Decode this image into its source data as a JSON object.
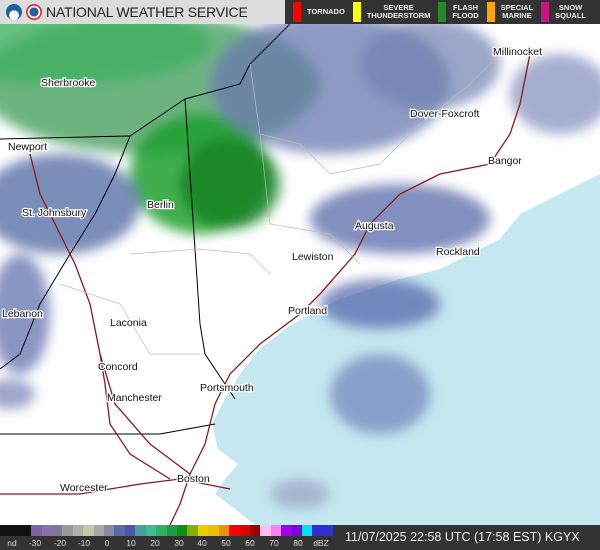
{
  "header": {
    "title": "NATIONAL WEATHER SERVICE",
    "logos": [
      "noaa-logo",
      "nws-logo"
    ]
  },
  "warning_legend": [
    {
      "label_line1": "TORNADO",
      "label_line2": "",
      "color": "#ff0000"
    },
    {
      "label_line1": "SEVERE",
      "label_line2": "THUNDERSTORM",
      "color": "#ffff00"
    },
    {
      "label_line1": "FLASH",
      "label_line2": "FLOOD",
      "color": "#228b22"
    },
    {
      "label_line1": "SPECIAL",
      "label_line2": "MARINE",
      "color": "#ffa500"
    },
    {
      "label_line1": "SNOW",
      "label_line2": "SQUALL",
      "color": "#c71585"
    }
  ],
  "map": {
    "cities": [
      "Sherbrooke",
      "Millinocket",
      "Dover-Foxcroft",
      "Newport",
      "Bangor",
      "St. Johnsbury",
      "Berlin",
      "Augusta",
      "Rockland",
      "Lewiston",
      "Lebanon",
      "Laconia",
      "Portland",
      "Concord",
      "Portsmouth",
      "Manchester",
      "Worcester",
      "Boston"
    ],
    "ocean_color": "#c5e8f0"
  },
  "colorbar": {
    "unit": "dBZ",
    "ticks": [
      "nd",
      "-30",
      "-20",
      "-10",
      "0",
      "10",
      "20",
      "30",
      "40",
      "50",
      "60",
      "70",
      "80",
      "dBZ"
    ],
    "colors": [
      "#111111",
      "#111111",
      "#111111",
      "#7b63a8",
      "#8a70b0",
      "#7c7898",
      "#9a9a9a",
      "#b0b0b0",
      "#c8c8a8",
      "#a8a8a8",
      "#8888a8",
      "#5a6aa8",
      "#4a5aa0",
      "#48a0a0",
      "#38c090",
      "#30b060",
      "#1aa040",
      "#109010",
      "#80b000",
      "#e8d000",
      "#e8c000",
      "#f09000",
      "#ff0000",
      "#e00000",
      "#a00000",
      "#ffc0f0",
      "#ff80f0",
      "#a000f0",
      "#8000e0",
      "#00e0f0",
      "#3030d0",
      "#3030d0"
    ]
  },
  "timestamp": "11/07/2025 22:58 UTC (17:58 EST) KGYX"
}
